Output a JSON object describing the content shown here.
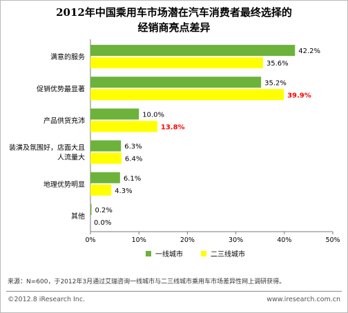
{
  "header": {
    "title_line1": "2012年中国乘用车市场潜在汽车消费者最终选择的",
    "title_line2": "经销商亮点差异"
  },
  "chart_data": {
    "type": "bar",
    "orientation": "horizontal",
    "categories": [
      "满意的服务",
      "促销优势最显著",
      "产品供货充沛",
      "装潢及氛围好，店面大且人流量大",
      "地理优势明显",
      "其他"
    ],
    "category_lines": [
      [
        "满意的服务"
      ],
      [
        "促销优势最显著"
      ],
      [
        "产品供货充沛"
      ],
      [
        "装潢及氛围好，店面大且",
        "人流量大"
      ],
      [
        "地理优势明显"
      ],
      [
        "其他"
      ]
    ],
    "series": [
      {
        "name": "一线城市",
        "color": "#6db23a",
        "values": [
          42.2,
          35.2,
          10.0,
          6.3,
          6.1,
          0.2
        ]
      },
      {
        "name": "二三线城市",
        "color": "#ffff00",
        "values": [
          35.6,
          39.9,
          13.8,
          6.4,
          4.3,
          0.0
        ]
      }
    ],
    "highlight_values": [
      [
        1,
        1
      ],
      [
        1,
        2
      ]
    ],
    "highlight_color": "#ff0000",
    "xlim": [
      0,
      50
    ],
    "x_ticks": [
      0,
      10,
      20,
      30,
      40,
      50
    ],
    "tick_suffix": "%",
    "legend_placement": "bottom-right",
    "grid": false
  },
  "footer": {
    "source_note": "来源：N=600，于2012年3月通过艾瑞咨询一线城市与二三线城市乘用车市场差异性网上调研获得。",
    "copyright": "©2012.8 iResearch Inc.",
    "website": "www.iresearch.com.cn"
  }
}
